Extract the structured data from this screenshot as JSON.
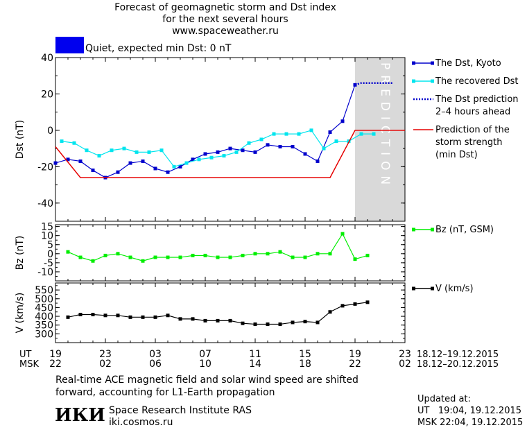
{
  "header": {
    "title_line1": "Forecast of geomagnetic storm and Dst index",
    "title_line2": "for the next several hours",
    "title_line3": "www.spaceweather.ru",
    "status_color": "#0000ee",
    "status_text": "Quiet, expected min Dst: 0 nT"
  },
  "prediction_label": "PREDICTION",
  "chart_data": [
    {
      "type": "line",
      "ylabel": "Dst (nT)",
      "ylim": [
        -50,
        40
      ],
      "yticks": [
        -40,
        -20,
        0,
        20,
        40
      ],
      "xlim": [
        19,
        47
      ],
      "series": [
        {
          "name": "The Dst, Kyoto",
          "color": "#0000cc",
          "x": [
            19,
            20,
            21,
            22,
            23,
            24,
            25,
            26,
            27,
            28,
            29,
            30,
            31,
            32,
            33,
            34,
            35,
            36,
            37,
            38,
            39,
            40,
            41,
            42,
            43
          ],
          "y": [
            -18,
            -16,
            -17,
            -22,
            -26,
            -23,
            -18,
            -17,
            -21,
            -23,
            -20,
            -16,
            -13,
            -12,
            -10,
            -11,
            -12,
            -8,
            -9,
            -9,
            -13,
            -17,
            -1,
            5,
            25
          ]
        },
        {
          "name": "The recovered Dst",
          "color": "#00e5ee",
          "x": [
            19.5,
            20.5,
            21.5,
            22.5,
            23.5,
            24.5,
            25.5,
            26.5,
            27.5,
            28.5,
            29.5,
            30.5,
            31.5,
            32.5,
            33.5,
            34.5,
            35.5,
            36.5,
            37.5,
            38.5,
            39.5,
            40.5,
            41.5,
            42.5,
            43.5,
            44.5
          ],
          "y": [
            -6,
            -7,
            -11,
            -14,
            -11,
            -10,
            -12,
            -12,
            -11,
            -20,
            -18,
            -16,
            -15,
            -14,
            -12,
            -7,
            -5,
            -2,
            -2,
            -2,
            0,
            -10,
            -6,
            -6,
            -2,
            -2
          ]
        },
        {
          "name": "The Dst prediction\n2–4 hours ahead",
          "color": "#0000cc",
          "style": "dotted",
          "x": [
            43,
            43.5,
            44,
            45,
            46
          ],
          "y": [
            25,
            26,
            26,
            26,
            26
          ]
        },
        {
          "name": "Prediction of the\nstorm strength\n(min Dst)",
          "color": "#e60000",
          "style": "step",
          "x": [
            19,
            21,
            41,
            43,
            47
          ],
          "y": [
            -9,
            -26,
            -26,
            0,
            0
          ]
        }
      ]
    },
    {
      "type": "line",
      "ylabel": "Bz (nT)",
      "ylim": [
        -15,
        16
      ],
      "yticks": [
        -10,
        -5,
        0,
        5,
        10,
        15
      ],
      "series": [
        {
          "name": "Bz (nT, GSM)",
          "color": "#00ee00",
          "x": [
            20,
            21,
            22,
            23,
            24,
            25,
            26,
            27,
            28,
            29,
            30,
            31,
            32,
            33,
            34,
            35,
            36,
            37,
            38,
            39,
            40,
            41,
            42,
            43,
            44
          ],
          "y": [
            1,
            -2,
            -4,
            -1,
            0,
            -2,
            -4,
            -2,
            -2,
            -2,
            -1,
            -1,
            -2,
            -2,
            -1,
            0,
            0,
            1,
            -2,
            -2,
            0,
            0,
            11,
            -3,
            -1
          ]
        }
      ]
    },
    {
      "type": "line",
      "ylabel": "V (km/s)",
      "ylim": [
        250,
        590
      ],
      "yticks": [
        300,
        350,
        400,
        450,
        500,
        550
      ],
      "series": [
        {
          "name": "V (km/s)",
          "color": "#000000",
          "x": [
            20,
            21,
            22,
            23,
            24,
            25,
            26,
            27,
            28,
            29,
            30,
            31,
            32,
            33,
            34,
            35,
            36,
            37,
            38,
            39,
            40,
            41,
            42,
            43,
            44
          ],
          "y": [
            395,
            410,
            410,
            405,
            405,
            395,
            395,
            395,
            405,
            385,
            385,
            375,
            375,
            375,
            360,
            355,
            355,
            355,
            365,
            370,
            365,
            425,
            460,
            470,
            480
          ]
        }
      ]
    }
  ],
  "x_axis": {
    "ut_label": "UT",
    "msk_label": "MSK",
    "ut_ticks": [
      "19",
      "23",
      "03",
      "07",
      "11",
      "15",
      "19",
      "23"
    ],
    "msk_ticks": [
      "22",
      "02",
      "06",
      "10",
      "14",
      "18",
      "22",
      "02"
    ],
    "ut_range": "18.12–19.12.2015",
    "msk_range": "18.12–20.12.2015"
  },
  "footer": {
    "note_line1": "Real-time ACE magnetic field and solar wind speed are shifted",
    "note_line2": "forward, accounting for L1-Earth propagation",
    "logo_text": "ИКИ",
    "institute": "Space Research Institute RAS",
    "website": "iki.cosmos.ru",
    "updated_label": "Updated at:",
    "updated_ut": "UT   19:04, 19.12.2015",
    "updated_msk": "MSK 22:04, 19.12.2015"
  }
}
